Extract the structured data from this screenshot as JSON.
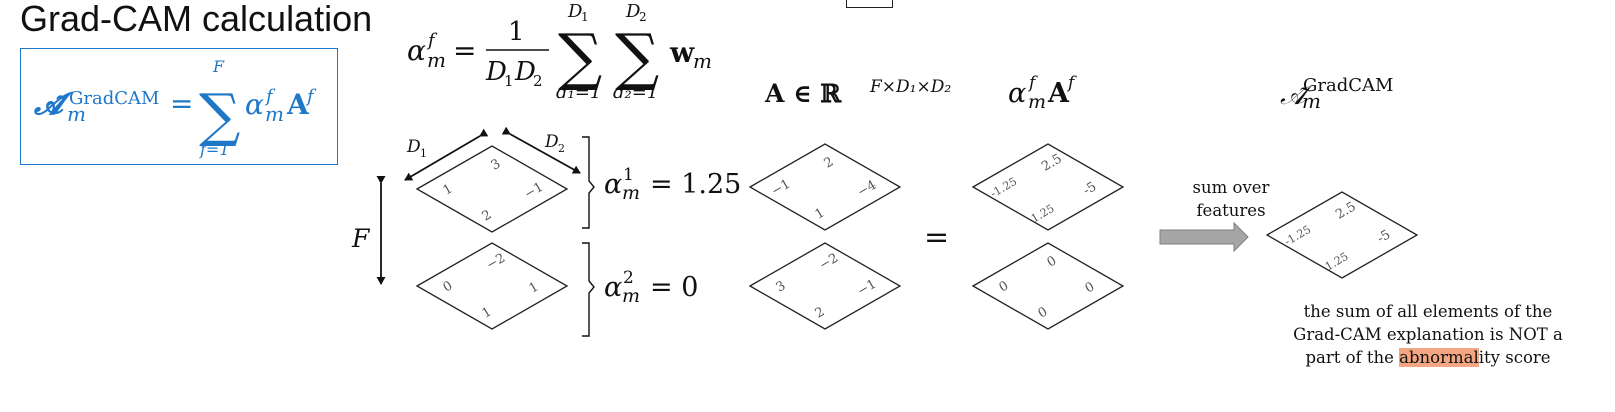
{
  "title": "Grad-CAM calculation",
  "formula_box": {
    "lhs_symbol": "𝓐̃",
    "lhs_sup": "GradCAM",
    "lhs_sub": "m",
    "equals": "=",
    "sum_upper": "F",
    "sum_lower": "f=1",
    "sigma": "∑",
    "term_alpha": "α",
    "term_alpha_sup": "f",
    "term_alpha_sub": "m",
    "term_A": "A",
    "term_A_sup": "f"
  },
  "alpha_formula": {
    "alpha": "α",
    "alpha_sup": "f",
    "alpha_sub": "m",
    "equals": "=",
    "numerator": "1",
    "denominator_D1": "D",
    "denominator_D1_sub": "1",
    "denominator_D2": "D",
    "denominator_D2_sub": "2",
    "sum1_upper": "D",
    "sum1_upper_sub": "1",
    "sum1_lower": "d₁=1",
    "sum2_upper": "D",
    "sum2_upper_sub": "2",
    "sum2_lower": "d₂=1",
    "sigma": "∑",
    "w": "w",
    "w_sub": "m"
  },
  "headers": {
    "A_def": "A ∈ ℝ",
    "A_def_sup": "F×D₁×D₂",
    "alphaA": "α",
    "alphaA_sup": "f",
    "alphaA_sub": "m",
    "alphaA_A": "A",
    "alphaA_A_sup": "f",
    "gradcam": "𝒜̃",
    "gradcam_sup": "GradCAM",
    "gradcam_sub": "m"
  },
  "dims": {
    "D1": "D",
    "D1_sub": "1",
    "D2": "D",
    "D2_sub": "2",
    "F": "F"
  },
  "gradients": {
    "top": [
      "1",
      "3",
      "−1",
      "2"
    ],
    "bottom": [
      "0",
      "−2",
      "1",
      "1"
    ]
  },
  "alpha_values": {
    "alpha1": "α",
    "alpha1_sup": "1",
    "alpha1_sub": "m",
    "alpha1_val": "= 1.25",
    "alpha2": "α",
    "alpha2_sup": "2",
    "alpha2_sub": "m",
    "alpha2_val": "= 0"
  },
  "activations": {
    "top": [
      "−1",
      "2",
      "−4",
      "1"
    ],
    "bottom": [
      "3",
      "−2",
      "−1",
      "2"
    ]
  },
  "equals_sign": "=",
  "weighted": {
    "top": [
      "-1.25",
      "2.5",
      "-5",
      "1.25"
    ],
    "bottom": [
      "0",
      "0",
      "0",
      "0"
    ]
  },
  "sum_label_line1": "sum over",
  "sum_label_line2": "features",
  "result": [
    "-1.25",
    "2.5",
    "-5",
    "1.25"
  ],
  "note": {
    "line1": "the sum of all elements of the",
    "line2": "Grad-CAM explanation is NOT a",
    "line3_pre": "part of the ",
    "line3_hl": "abnormal",
    "line3_post": "ity score"
  },
  "colors": {
    "formula_blue": "#1f77c8",
    "highlight": "#f4a582",
    "arrow_fill": "#a6a6a6",
    "cell_text": "#555555"
  }
}
